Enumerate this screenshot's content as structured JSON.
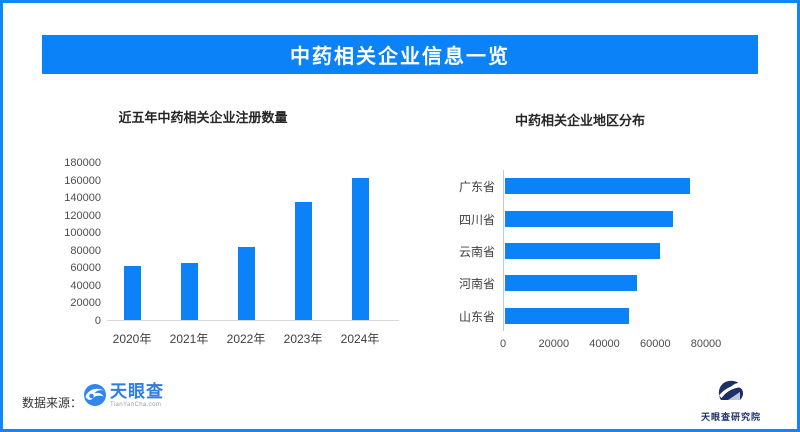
{
  "page": {
    "banner_title": "中药相关企业信息一览",
    "accent_color": "#0b82f7",
    "border_color": "#1086fb"
  },
  "footer": {
    "source_label": "数据来源：",
    "tyc_logo_text": "天眼查",
    "tyc_logo_sub": "TianYanCha.com",
    "institute_name": "天眼查研究院"
  },
  "chart_data": [
    {
      "type": "bar",
      "title": "近五年中药相关企业注册数量",
      "categories": [
        "2020年",
        "2021年",
        "2022年",
        "2023年",
        "2024年"
      ],
      "values": [
        62000,
        65000,
        83000,
        134000,
        162000
      ],
      "xlabel": "",
      "ylabel": "",
      "ylim": [
        0,
        180000
      ],
      "yticks": [
        0,
        20000,
        40000,
        60000,
        80000,
        100000,
        120000,
        140000,
        160000,
        180000
      ],
      "grid": false,
      "legend": "none",
      "bar_color": "#0b82f7"
    },
    {
      "type": "bar-horizontal",
      "title": "中药相关企业地区分布",
      "categories": [
        "广东省",
        "四川省",
        "云南省",
        "河南省",
        "山东省"
      ],
      "values": [
        73000,
        66000,
        61000,
        52000,
        49000
      ],
      "xlabel": "",
      "ylabel": "",
      "xlim": [
        0,
        80000
      ],
      "xticks": [
        0,
        20000,
        40000,
        60000,
        80000
      ],
      "grid": false,
      "legend": "none",
      "bar_color": "#0b82f7"
    }
  ]
}
